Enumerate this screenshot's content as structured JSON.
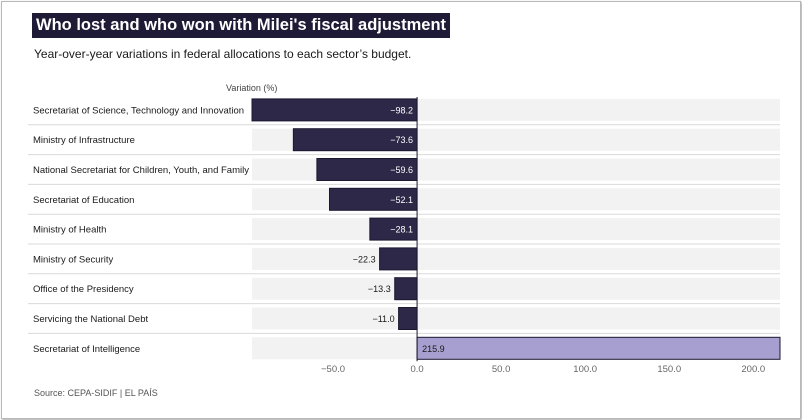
{
  "header": {
    "title": "Who lost and who won with Milei's fiscal adjustment",
    "subtitle": "Year-over-year variations in federal allocations to each sector’s budget."
  },
  "footer": {
    "source": "Source: CEPA-SIDIF | EL PAÍS"
  },
  "colors": {
    "negative_bar": "#2d2748",
    "positive_bar": "#a79fcf",
    "band": "#f2f2f2",
    "title_bg": "#1f1a36"
  },
  "chart_data": {
    "type": "bar",
    "orientation": "horizontal",
    "title": "Who lost and who won with Milei's fiscal adjustment",
    "subtitle": "Year-over-year variations in federal allocations to each sector’s budget.",
    "axis_title": "Variation (%)",
    "categories": [
      "Secretariat of Science, Technology and Innovation",
      "Ministry of Infrastructure",
      "National Secretariat for Children, Youth, and Family",
      "Secretariat of Education",
      "Ministry of Health",
      "Ministry of Security",
      "Office of the Presidency",
      "Servicing the National Debt",
      "Secretariat of Intelligence"
    ],
    "values": [
      -98.2,
      -73.6,
      -59.6,
      -52.1,
      -28.1,
      -22.3,
      -13.3,
      -11.0,
      215.9
    ],
    "value_labels": [
      "−98.2",
      "−73.6",
      "−59.6",
      "−52.1",
      "−28.1",
      "−22.3",
      "−13.3",
      "−11.0",
      "215.9"
    ],
    "xticks": [
      -50,
      0,
      50,
      100,
      150,
      200
    ],
    "xtick_labels": [
      "−50.0",
      "0.0",
      "50.0",
      "100.0",
      "150.0",
      "200.0"
    ],
    "xlim": [
      -98.2,
      215.9
    ],
    "grid": false
  }
}
